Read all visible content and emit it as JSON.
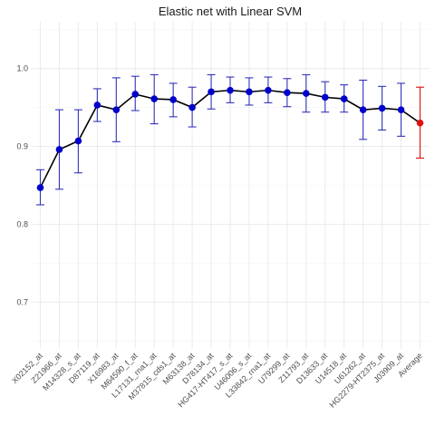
{
  "chart_data": {
    "type": "line",
    "title": "Elastic net  with Linear SVM",
    "xlabel": "",
    "ylabel": "",
    "ylim": [
      0.64,
      1.06
    ],
    "yticks": [
      0.7,
      0.8,
      0.9,
      1.0
    ],
    "ytick_labels": [
      "0.7",
      "0.8",
      "0.9",
      "1.0"
    ],
    "grid": true,
    "legend": "none",
    "colors": {
      "line": "#000000",
      "point": "#0000cc",
      "errorbar": "#3333bb",
      "average": "#dd1111"
    },
    "categories": [
      "X02152_at",
      "Z21966_at",
      "M14328_s_at",
      "D87119_at",
      "X16983_at",
      "M64590_f_at",
      "L17131_rna1_at",
      "M37815_cds1_at",
      "M63138_at",
      "D78134_at",
      "HG417-HT417_s_at",
      "U46006_s_at",
      "L33842_rna1_at",
      "U79299_at",
      "Z11793_at",
      "D13633_at",
      "U14518_at",
      "U61262_at",
      "HG2279-HT2375_at",
      "J03909_at",
      "Average"
    ],
    "series": [
      {
        "values": [
          0.847,
          0.896,
          0.907,
          0.953,
          0.947,
          0.967,
          0.961,
          0.96,
          0.95,
          0.97,
          0.972,
          0.97,
          0.972,
          0.969,
          0.968,
          0.963,
          0.961,
          0.947,
          0.949,
          0.947,
          0.93
        ],
        "lower": [
          0.825,
          0.845,
          0.866,
          0.932,
          0.906,
          0.946,
          0.929,
          0.938,
          0.925,
          0.948,
          0.956,
          0.953,
          0.956,
          0.951,
          0.944,
          0.944,
          0.944,
          0.909,
          0.921,
          0.913,
          0.885
        ],
        "upper": [
          0.87,
          0.947,
          0.947,
          0.974,
          0.988,
          0.99,
          0.992,
          0.981,
          0.976,
          0.992,
          0.989,
          0.988,
          0.989,
          0.987,
          0.992,
          0.983,
          0.979,
          0.985,
          0.977,
          0.981,
          0.976
        ]
      }
    ]
  }
}
